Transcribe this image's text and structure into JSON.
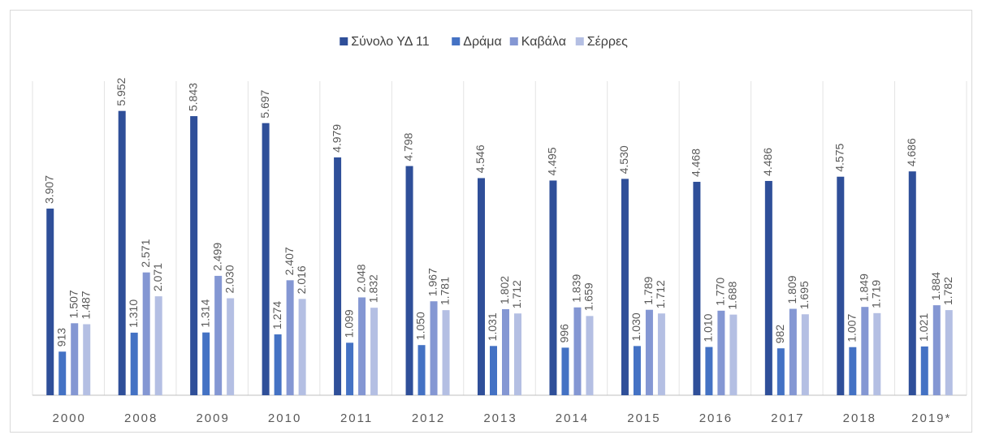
{
  "chart_data": {
    "type": "bar",
    "categories": [
      "2000",
      "2008",
      "2009",
      "2010",
      "2011",
      "2012",
      "2013",
      "2014",
      "2015",
      "2016",
      "2017",
      "2018",
      "2019*"
    ],
    "ylim": [
      0,
      7000
    ],
    "series": [
      {
        "name": "Σύνολο ΥΔ 11",
        "color": "#2f4f99",
        "values": [
          3907,
          5952,
          5843,
          5697,
          4979,
          4798,
          4546,
          4495,
          4530,
          4468,
          4486,
          4575,
          4686
        ],
        "value_labels": [
          "3.907",
          "5.952",
          "5.843",
          "5.697",
          "4.979",
          "4.798",
          "4.546",
          "4.495",
          "4.530",
          "4.468",
          "4.486",
          "4.575",
          "4.686"
        ]
      },
      {
        "name": "Δράμα",
        "color": "#4472c4",
        "values": [
          913,
          1310,
          1314,
          1274,
          1099,
          1050,
          1031,
          996,
          1030,
          1010,
          982,
          1007,
          1021
        ],
        "value_labels": [
          "913",
          "1.310",
          "1.314",
          "1.274",
          "1.099",
          "1.050",
          "1.031",
          "996",
          "1.030",
          "1.010",
          "982",
          "1.007",
          "1.021"
        ]
      },
      {
        "name": "Καβάλα",
        "color": "#8497d3",
        "values": [
          1507,
          2571,
          2499,
          2407,
          2048,
          1967,
          1802,
          1839,
          1789,
          1770,
          1809,
          1849,
          1884
        ],
        "value_labels": [
          "1.507",
          "2.571",
          "2.499",
          "2.407",
          "2.048",
          "1.967",
          "1.802",
          "1.839",
          "1.789",
          "1.770",
          "1.809",
          "1.849",
          "1.884"
        ]
      },
      {
        "name": "Σέρρες",
        "color": "#b4bfe3",
        "values": [
          1487,
          2071,
          2030,
          2016,
          1832,
          1781,
          1712,
          1659,
          1712,
          1688,
          1695,
          1719,
          1782
        ],
        "value_labels": [
          "1.487",
          "2.071",
          "2.030",
          "2.016",
          "1.832",
          "1.781",
          "1.712",
          "1.659",
          "1.712",
          "1.688",
          "1.695",
          "1.719",
          "1.782"
        ]
      }
    ]
  }
}
